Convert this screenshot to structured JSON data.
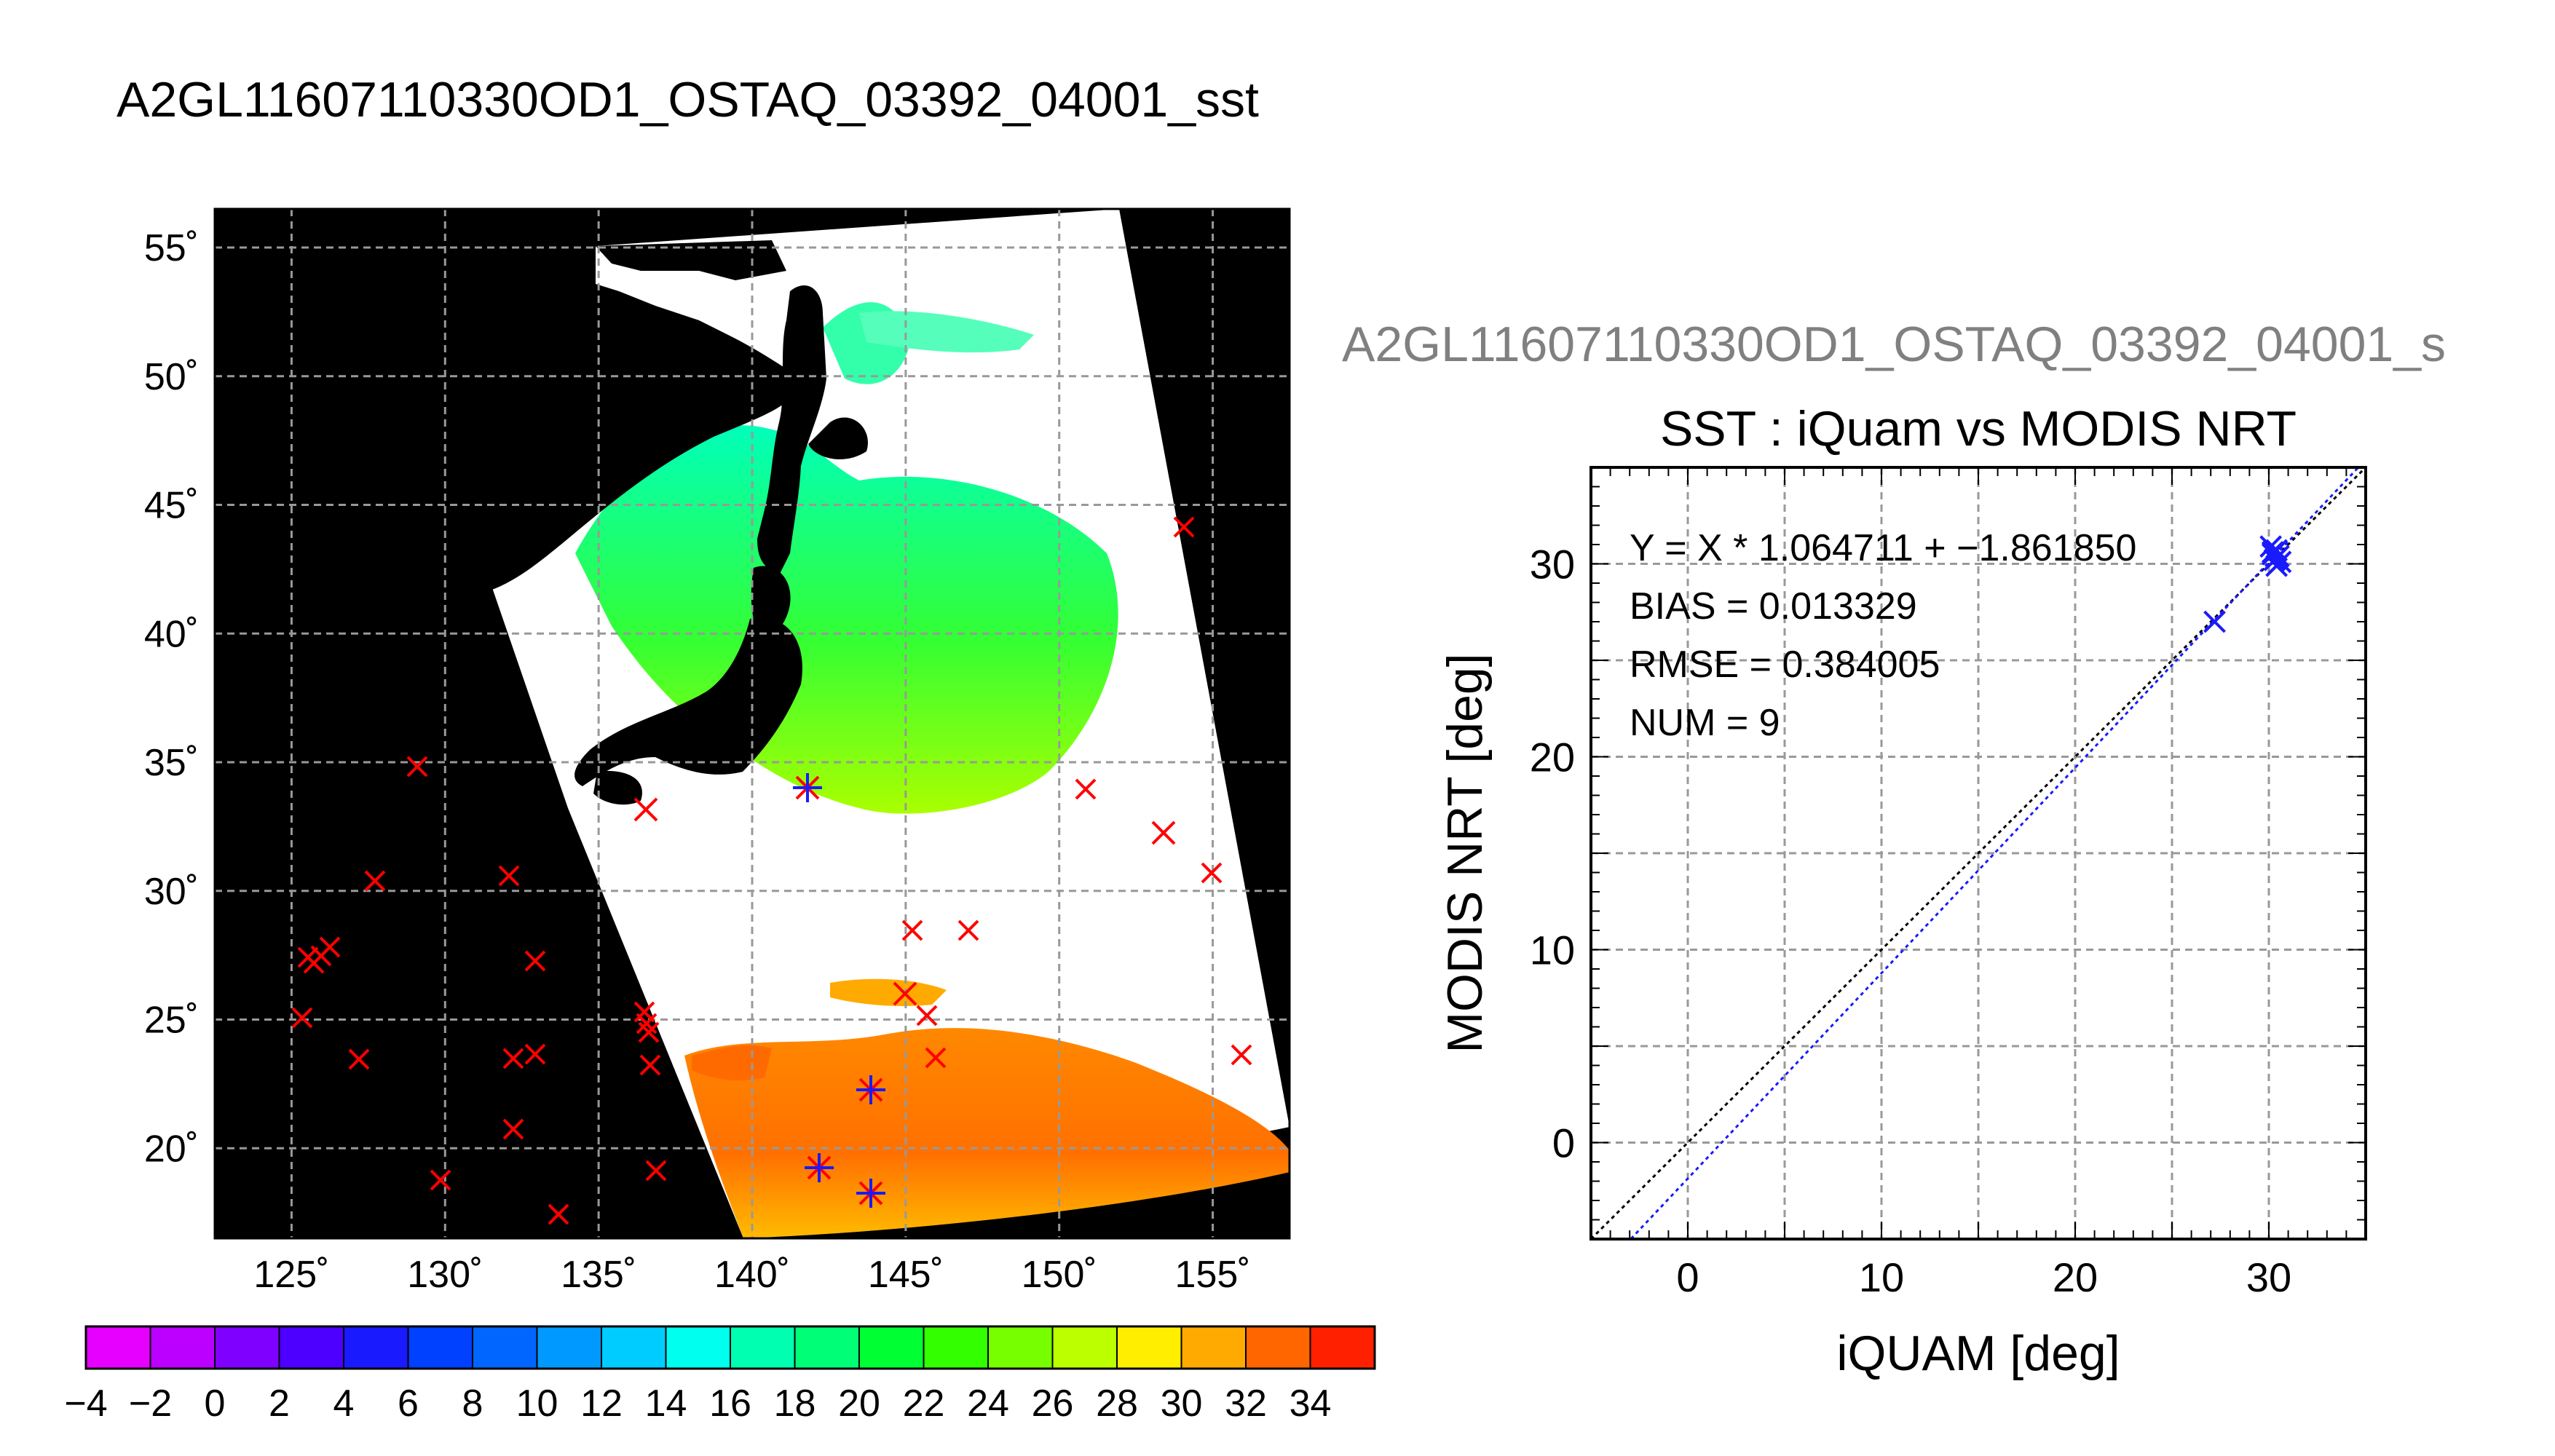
{
  "page_title": "A2GL11607110330OD1_OSTAQ_03392_04001_sst",
  "map": {
    "lon_ticks": [
      "125˚",
      "130˚",
      "135˚",
      "140˚",
      "145˚",
      "150˚",
      "155˚"
    ],
    "lat_ticks": [
      "20˚",
      "25˚",
      "30˚",
      "35˚",
      "40˚",
      "45˚",
      "50˚",
      "55˚"
    ],
    "lon_range": [
      122.5,
      157.5
    ],
    "lat_range": [
      16.5,
      56.5
    ],
    "colors": {
      "background": "#000000",
      "swath": "#ffffff",
      "land": "#000000",
      "marker": "#ff0000",
      "match_marker": "#1a1aff",
      "grid": "#999999"
    }
  },
  "colorbar": {
    "labels": [
      "−4",
      "−2",
      "0",
      "2",
      "4",
      "6",
      "8",
      "10",
      "12",
      "14",
      "16",
      "18",
      "20",
      "22",
      "24",
      "26",
      "28",
      "30",
      "32",
      "34"
    ],
    "range": [
      -4,
      36
    ],
    "colors": [
      "#e600ff",
      "#bb00ff",
      "#8000ff",
      "#4d00ff",
      "#1a1aff",
      "#0040ff",
      "#0066ff",
      "#0099ff",
      "#00ccff",
      "#00ffee",
      "#00ffb0",
      "#00ff77",
      "#00ff33",
      "#33ff00",
      "#77ff00",
      "#bbff00",
      "#ffee00",
      "#ffaa00",
      "#ff6600",
      "#ff2000"
    ]
  },
  "scatter_title": "A2GL11607110330OD1_OSTAQ_03392_04001_s",
  "chart_data": {
    "type": "scatter",
    "title": "SST : iQuam vs MODIS NRT",
    "xlabel": "iQUAM [deg]",
    "ylabel": "MODIS NRT [deg]",
    "xlim": [
      -5,
      35
    ],
    "ylim": [
      -5,
      35
    ],
    "x_ticks": [
      0,
      10,
      20,
      30
    ],
    "y_ticks": [
      0,
      10,
      20,
      30
    ],
    "grid": true,
    "stats": [
      "Y = X * 1.064711 + −1.861850",
      "BIAS = 0.013329",
      "RMSE = 0.384005",
      "NUM = 9"
    ],
    "slope": 1.064711,
    "intercept": -1.86185,
    "points": [
      {
        "x": 27.2,
        "y": 27.0
      },
      {
        "x": 30.1,
        "y": 30.9
      },
      {
        "x": 30.4,
        "y": 30.7
      },
      {
        "x": 30.2,
        "y": 30.5
      },
      {
        "x": 30.5,
        "y": 30.4
      },
      {
        "x": 30.3,
        "y": 30.2
      },
      {
        "x": 30.6,
        "y": 30.1
      },
      {
        "x": 30.4,
        "y": 29.9
      },
      {
        "x": 30.2,
        "y": 30.6
      }
    ],
    "colors": {
      "points": "#1a1aff",
      "fit_line": "#1a1aff",
      "identity_line": "#000000"
    }
  }
}
